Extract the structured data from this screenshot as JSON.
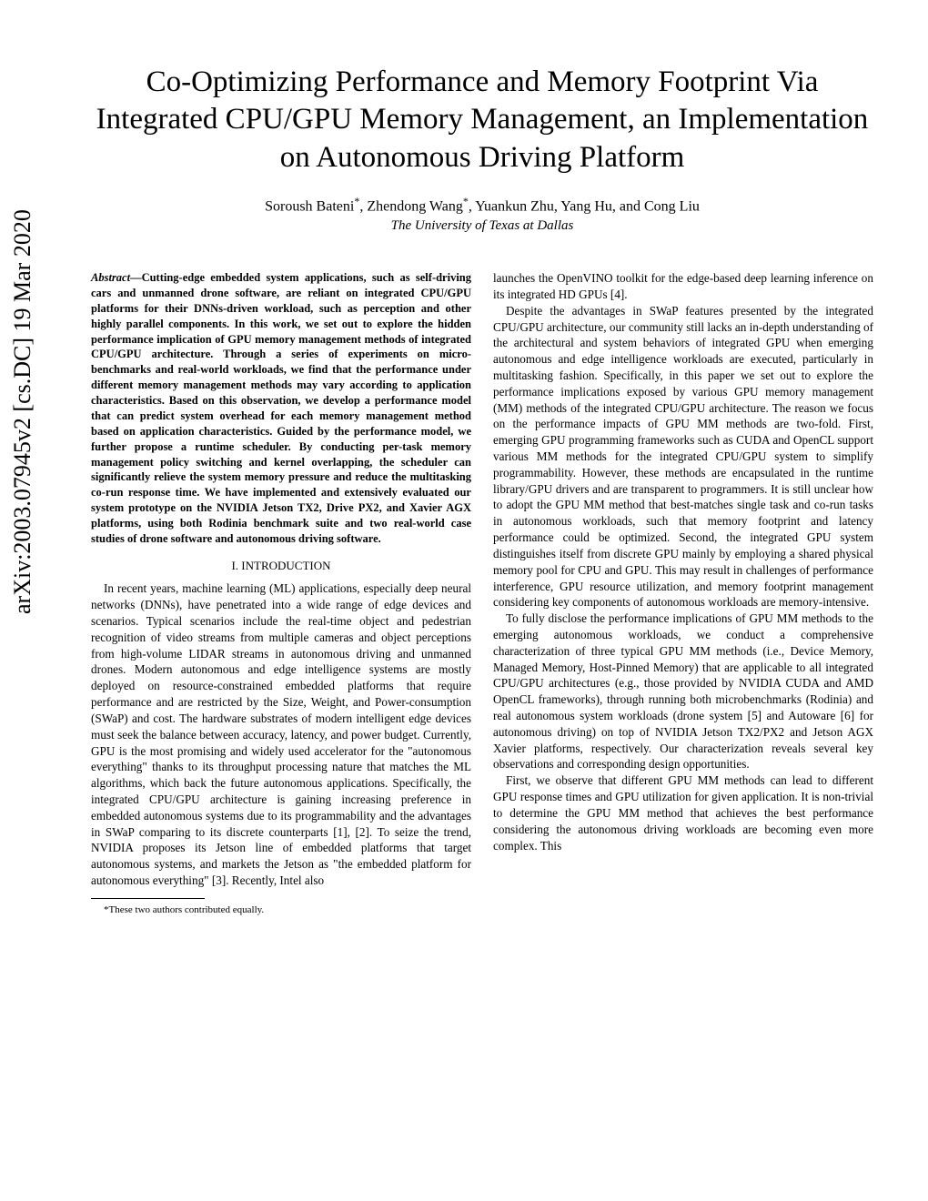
{
  "arxiv": "arXiv:2003.07945v2  [cs.DC]  19 Mar 2020",
  "title": "Co-Optimizing Performance and Memory Footprint Via Integrated CPU/GPU Memory Management, an Implementation on Autonomous Driving Platform",
  "authors": "Soroush Bateni*, Zhendong Wang*, Yuankun Zhu, Yang Hu, and Cong Liu",
  "affiliation": "The University of Texas at Dallas",
  "abstract_label": "Abstract",
  "abstract_text": "—Cutting-edge embedded system applications, such as self-driving cars and unmanned drone software, are reliant on integrated CPU/GPU platforms for their DNNs-driven workload, such as perception and other highly parallel components. In this work, we set out to explore the hidden performance implication of GPU memory management methods of integrated CPU/GPU architecture. Through a series of experiments on micro-benchmarks and real-world workloads, we find that the performance under different memory management methods may vary according to application characteristics. Based on this observation, we develop a performance model that can predict system overhead for each memory management method based on application characteristics. Guided by the performance model, we further propose a runtime scheduler. By conducting per-task memory management policy switching and kernel overlapping, the scheduler can significantly relieve the system memory pressure and reduce the multitasking co-run response time. We have implemented and extensively evaluated our system prototype on the NVIDIA Jetson TX2, Drive PX2, and Xavier AGX platforms, using both Rodinia benchmark suite and two real-world case studies of drone software and autonomous driving software.",
  "section1_heading": "I.  INTRODUCTION",
  "intro_p1": "In recent years, machine learning (ML) applications, especially deep neural networks (DNNs), have penetrated into a wide range of edge devices and scenarios. Typical scenarios include the real-time object and pedestrian recognition of video streams from multiple cameras and object perceptions from high-volume LIDAR streams in autonomous driving and unmanned drones. Modern autonomous and edge intelligence systems are mostly deployed on resource-constrained embedded platforms that require performance and are restricted by the Size, Weight, and Power-consumption (SWaP) and cost. The hardware substrates of modern intelligent edge devices must seek the balance between accuracy, latency, and power budget. Currently, GPU is the most promising and widely used accelerator for the \"autonomous everything\" thanks to its throughput processing nature that matches the ML algorithms, which back the future autonomous applications. Specifically, the integrated CPU/GPU architecture is gaining increasing preference in embedded autonomous systems due to its programmability and the advantages in SWaP comparing to its discrete counterparts [1], [2]. To seize the trend, NVIDIA proposes its Jetson line of embedded platforms that target autonomous systems, and markets the Jetson as \"the embedded platform for autonomous everything\" [3]. Recently, Intel also",
  "right_p1": "launches the OpenVINO toolkit for the edge-based deep learning inference on its integrated HD GPUs [4].",
  "right_p2": "Despite the advantages in SWaP features presented by the integrated CPU/GPU architecture, our community still lacks an in-depth understanding of the architectural and system behaviors of integrated GPU when emerging autonomous and edge intelligence workloads are executed, particularly in multitasking fashion. Specifically, in this paper we set out to explore the performance implications exposed by various GPU memory management (MM) methods of the integrated CPU/GPU architecture. The reason we focus on the performance impacts of GPU MM methods are two-fold. First, emerging GPU programming frameworks such as CUDA and OpenCL support various MM methods for the integrated CPU/GPU system to simplify programmability. However, these methods are encapsulated in the runtime library/GPU drivers and are transparent to programmers. It is still unclear how to adopt the GPU MM method that best-matches single task and co-run tasks in autonomous workloads, such that memory footprint and latency performance could be optimized. Second, the integrated GPU system distinguishes itself from discrete GPU mainly by employing a shared physical memory pool for CPU and GPU. This may result in challenges of performance interference, GPU resource utilization, and memory footprint management considering key components of autonomous workloads are memory-intensive.",
  "right_p3": "To fully disclose the performance implications of GPU MM methods to the emerging autonomous workloads, we conduct a comprehensive characterization of three typical GPU MM methods (i.e., Device Memory, Managed Memory, Host-Pinned Memory) that are applicable to all integrated CPU/GPU architectures (e.g., those provided by NVIDIA CUDA and AMD OpenCL frameworks), through running both microbenchmarks (Rodinia) and real autonomous system workloads (drone system [5] and Autoware [6] for autonomous driving) on top of NVIDIA Jetson TX2/PX2 and Jetson AGX Xavier platforms, respectively. Our characterization reveals several key observations and corresponding design opportunities.",
  "right_p4": "First, we observe that different GPU MM methods can lead to different GPU response times and GPU utilization for given application. It is non-trivial to determine the GPU MM method that achieves the best performance considering the autonomous driving workloads are becoming even more complex. This",
  "footnote": "*These two authors contributed equally."
}
